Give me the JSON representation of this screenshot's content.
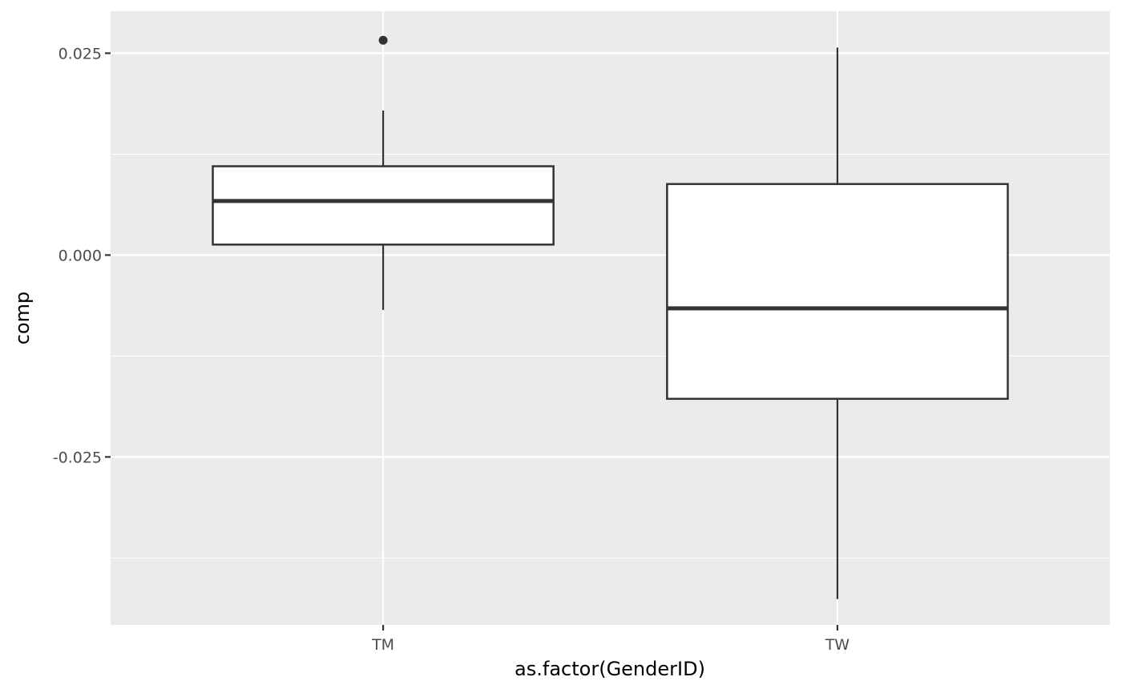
{
  "chart_data": {
    "type": "boxplot",
    "xlabel": "as.factor(GenderID)",
    "ylabel": "comp",
    "categories": [
      "TM",
      "TW"
    ],
    "ylim": [
      -0.0458,
      0.0302
    ],
    "y_ticks": [
      0.025,
      0.0,
      -0.025
    ],
    "y_tick_labels": [
      "0.025",
      "0.000",
      "-0.025"
    ],
    "grid": true,
    "boxes": [
      {
        "category": "TM",
        "whisker_low": -0.0068,
        "q1": 0.0013,
        "median": 0.0067,
        "q3": 0.011,
        "whisker_high": 0.0179,
        "outliers": [
          0.0266
        ]
      },
      {
        "category": "TW",
        "whisker_low": -0.0426,
        "q1": -0.0178,
        "median": -0.0066,
        "q3": 0.0088,
        "whisker_high": 0.0257,
        "outliers": []
      }
    ],
    "colors": {
      "panel": "#ebebeb",
      "grid": "#ffffff",
      "box_fill": "#ffffff",
      "box_stroke": "#333333",
      "outlier": "#333333"
    }
  }
}
